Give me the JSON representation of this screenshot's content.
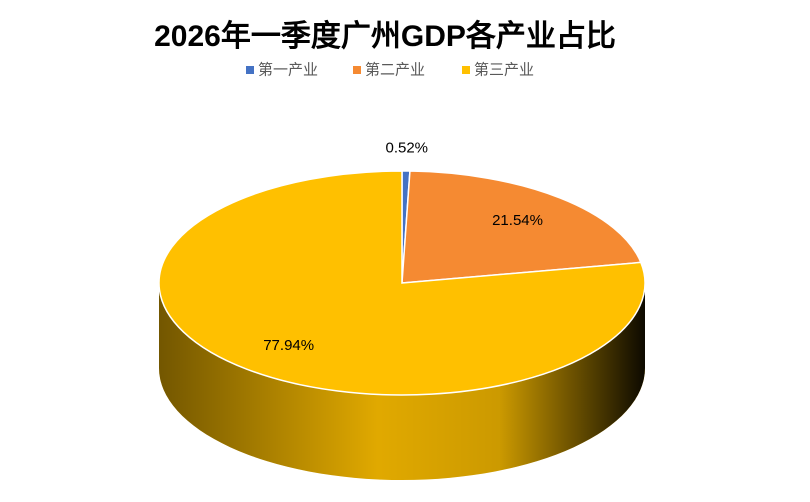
{
  "chart_data": {
    "type": "pie",
    "title": "2026年一季度广州GDP各产业占比",
    "categories": [
      "第一产业",
      "第二产业",
      "第三产业"
    ],
    "values": [
      0.52,
      21.54,
      77.94
    ],
    "value_labels": [
      "0.52%",
      "21.54%",
      "77.94%"
    ],
    "colors": [
      "#4472c4",
      "#f58a32",
      "#ffc000"
    ],
    "legend": "top"
  }
}
